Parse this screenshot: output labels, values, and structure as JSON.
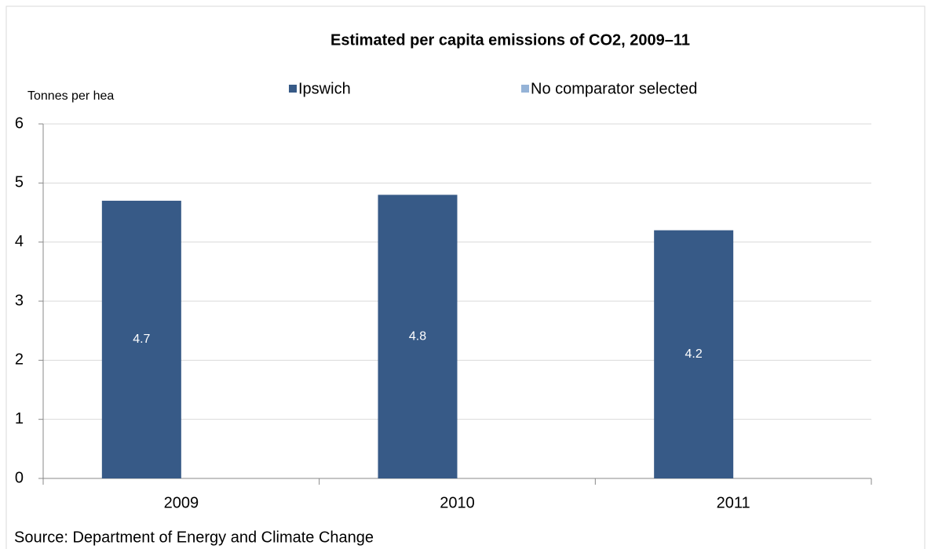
{
  "chart_data": {
    "type": "bar",
    "title": "Estimated per capita emissions of CO2, 2009–11",
    "y_label": "Tonnes per hea",
    "categories": [
      "2009",
      "2010",
      "2011"
    ],
    "series": [
      {
        "name": "Ipswich",
        "color": "#375a87",
        "values": [
          4.7,
          4.8,
          4.2
        ]
      },
      {
        "name": "No comparator selected",
        "color": "#95b3d7",
        "values": [
          null,
          null,
          null
        ]
      }
    ],
    "ylim": [
      0,
      6
    ],
    "yticks": [
      0,
      1,
      2,
      3,
      4,
      5,
      6
    ],
    "grid": true,
    "source": "Source: Department of Energy and Climate Change"
  }
}
